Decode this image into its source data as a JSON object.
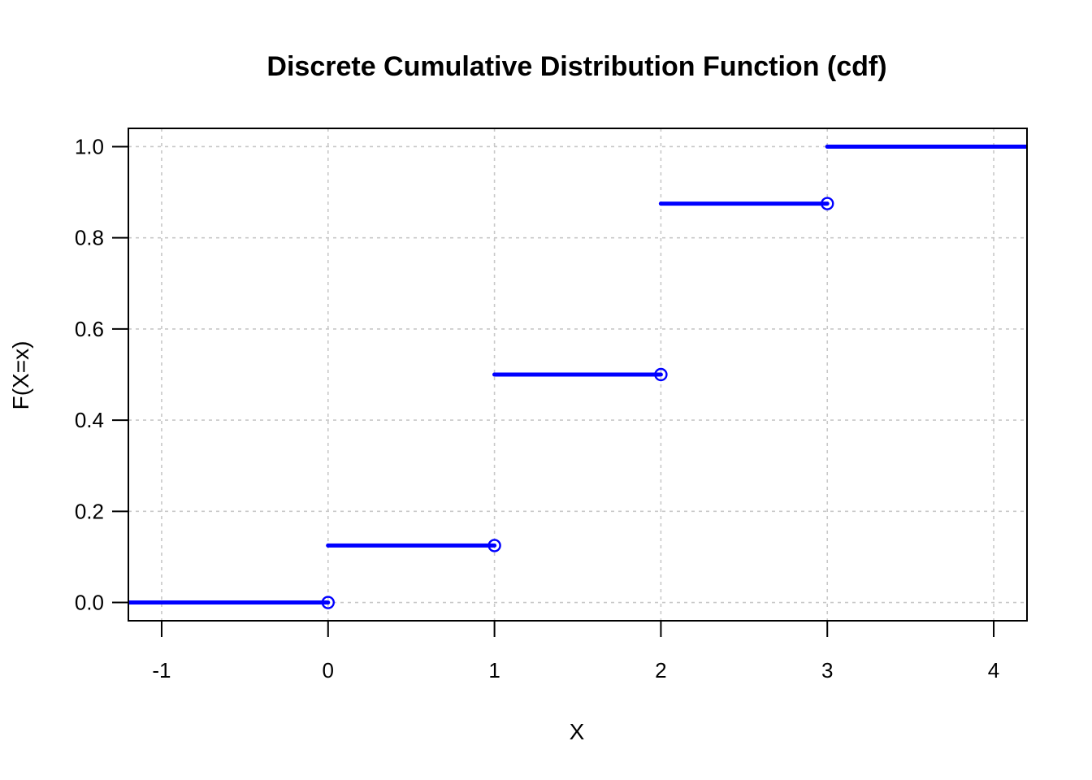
{
  "chart_data": {
    "type": "line",
    "title": "Discrete Cumulative Distribution Function (cdf)",
    "xlabel": "X",
    "ylabel": "F(X=x)",
    "xlim": [
      -1.2,
      4.2
    ],
    "ylim": [
      -0.04,
      1.04
    ],
    "x_ticks": [
      -1,
      0,
      1,
      2,
      3,
      4
    ],
    "y_ticks": [
      0.0,
      0.2,
      0.4,
      0.6,
      0.8,
      1.0
    ],
    "x_tick_labels": [
      "-1",
      "0",
      "1",
      "2",
      "3",
      "4"
    ],
    "y_tick_labels": [
      "0.0",
      "0.2",
      "0.4",
      "0.6",
      "0.8",
      "1.0"
    ],
    "grid": true,
    "series_color": "#0000ff",
    "steps": [
      {
        "x_start": -1.2,
        "x_end": 0,
        "y": 0.0,
        "open_end": true
      },
      {
        "x_start": 0,
        "x_end": 1,
        "y": 0.125,
        "open_end": true
      },
      {
        "x_start": 1,
        "x_end": 2,
        "y": 0.5,
        "open_end": true
      },
      {
        "x_start": 2,
        "x_end": 3,
        "y": 0.875,
        "open_end": true
      },
      {
        "x_start": 3,
        "x_end": 4.2,
        "y": 1.0,
        "open_end": false
      }
    ]
  }
}
